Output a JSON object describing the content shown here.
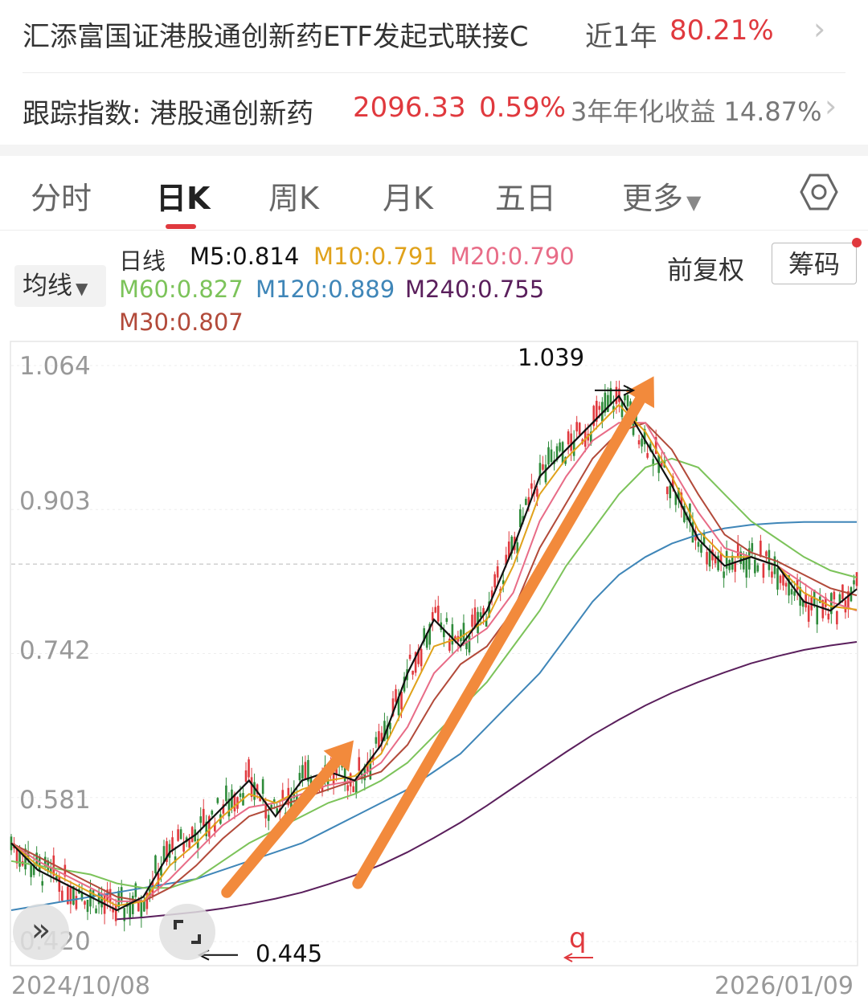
{
  "fund": {
    "name": "汇添富国证港股通创新药ETF发起式联接C",
    "period_label": "近1年",
    "period_return": "80.21%"
  },
  "index": {
    "label": "跟踪指数: 港股通创新药",
    "value": "2096.33",
    "change": "0.59%",
    "annual_label": "3年年化收益 14.87%"
  },
  "tabs": [
    "分时",
    "日K",
    "周K",
    "月K",
    "五日",
    "更多"
  ],
  "active_tab": "日K",
  "toolbar": {
    "ma_select": "均线",
    "adjust": "前复权",
    "chip": "筹码"
  },
  "ma_legend": {
    "title": "日线",
    "m5": "M5:0.814",
    "m10": "M10:0.791",
    "m20": "M20:0.790",
    "m60": "M60:0.827",
    "m120": "M120:0.889",
    "m240": "M240:0.755",
    "m30": "M30:0.807"
  },
  "colors": {
    "up": "#e0393e",
    "down": "#2e8b3a",
    "m5": "#111111",
    "m10": "#e0a21b",
    "m20": "#e86c87",
    "m30": "#b24a3a",
    "m60": "#7cc35a",
    "m120": "#3f86b8",
    "m240": "#5a1f5c",
    "arrow": "#f28a3c"
  },
  "icons": {
    "expand": "chevrons-right-icon",
    "fullscreen": "fullscreen-icon",
    "settings": "hexagon-settings-icon"
  },
  "chart_data": {
    "type": "candlestick",
    "ytick_labels": [
      "1.064",
      "0.903",
      "0.742",
      "0.581",
      "0.420"
    ],
    "ylim": [
      0.42,
      1.064
    ],
    "reference_line": 0.842,
    "x_range": [
      "2024/10/08",
      "2026/01/09"
    ],
    "annotations": {
      "high": "1.039",
      "low": "0.445",
      "marker": "q"
    },
    "series": [
      {
        "name": "M5",
        "values": [
          0.53,
          0.5,
          0.485,
          0.47,
          0.455,
          0.47,
          0.52,
          0.54,
          0.57,
          0.6,
          0.56,
          0.6,
          0.61,
          0.6,
          0.64,
          0.72,
          0.78,
          0.75,
          0.79,
          0.86,
          0.94,
          0.97,
          1.0,
          1.03,
          0.98,
          0.93,
          0.87,
          0.84,
          0.85,
          0.84,
          0.8,
          0.79,
          0.814
        ]
      },
      {
        "name": "M10",
        "values": [
          0.53,
          0.505,
          0.49,
          0.475,
          0.46,
          0.465,
          0.505,
          0.53,
          0.56,
          0.585,
          0.575,
          0.59,
          0.6,
          0.605,
          0.63,
          0.69,
          0.75,
          0.76,
          0.78,
          0.84,
          0.92,
          0.96,
          0.99,
          1.02,
          0.99,
          0.94,
          0.88,
          0.85,
          0.85,
          0.84,
          0.81,
          0.795,
          0.791
        ]
      },
      {
        "name": "M20",
        "values": [
          0.53,
          0.51,
          0.495,
          0.48,
          0.465,
          0.465,
          0.49,
          0.52,
          0.55,
          0.57,
          0.575,
          0.585,
          0.595,
          0.6,
          0.62,
          0.66,
          0.72,
          0.75,
          0.77,
          0.81,
          0.89,
          0.94,
          0.98,
          1.0,
          1.0,
          0.95,
          0.9,
          0.86,
          0.85,
          0.84,
          0.82,
          0.8,
          0.79
        ]
      },
      {
        "name": "M30",
        "values": [
          0.53,
          0.515,
          0.5,
          0.485,
          0.47,
          0.465,
          0.48,
          0.505,
          0.535,
          0.56,
          0.57,
          0.58,
          0.59,
          0.6,
          0.61,
          0.64,
          0.69,
          0.73,
          0.75,
          0.79,
          0.86,
          0.91,
          0.96,
          0.99,
          1.0,
          0.97,
          0.92,
          0.875,
          0.855,
          0.845,
          0.83,
          0.815,
          0.807
        ]
      },
      {
        "name": "M60",
        "values": [
          0.51,
          0.505,
          0.5,
          0.495,
          0.485,
          0.48,
          0.48,
          0.49,
          0.51,
          0.53,
          0.545,
          0.56,
          0.575,
          0.585,
          0.6,
          0.62,
          0.65,
          0.68,
          0.71,
          0.75,
          0.79,
          0.84,
          0.88,
          0.92,
          0.95,
          0.96,
          0.95,
          0.92,
          0.89,
          0.87,
          0.85,
          0.835,
          0.827
        ]
      },
      {
        "name": "M120",
        "values": [
          0.455,
          0.46,
          0.465,
          0.47,
          0.475,
          0.48,
          0.485,
          0.49,
          0.5,
          0.51,
          0.52,
          0.53,
          0.545,
          0.56,
          0.575,
          0.59,
          0.61,
          0.63,
          0.66,
          0.69,
          0.72,
          0.76,
          0.8,
          0.83,
          0.85,
          0.865,
          0.875,
          0.882,
          0.886,
          0.888,
          0.889,
          0.889,
          0.889
        ]
      },
      {
        "name": "M240",
        "values": [
          null,
          null,
          null,
          null,
          0.445,
          0.447,
          0.45,
          0.453,
          0.457,
          0.462,
          0.468,
          0.475,
          0.484,
          0.494,
          0.506,
          0.52,
          0.536,
          0.553,
          0.572,
          0.592,
          0.612,
          0.632,
          0.651,
          0.668,
          0.684,
          0.698,
          0.71,
          0.721,
          0.731,
          0.739,
          0.746,
          0.751,
          0.755
        ]
      }
    ]
  }
}
